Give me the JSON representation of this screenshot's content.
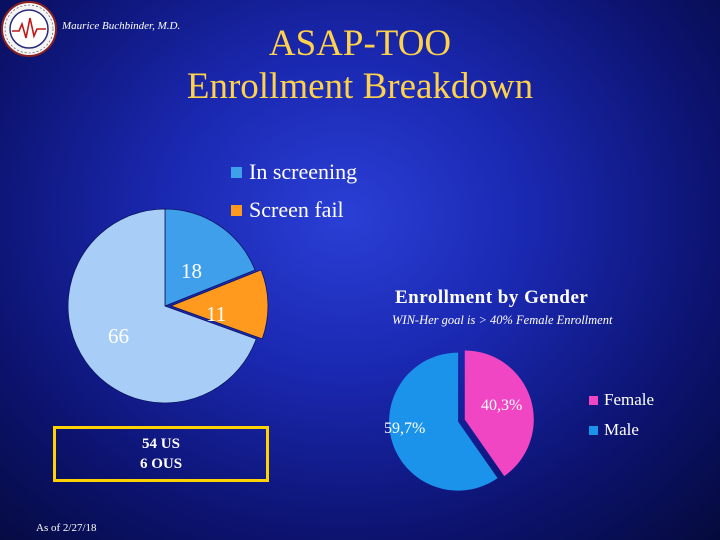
{
  "header": {
    "author": "Maurice Buchbinder, M.D.",
    "title_line1": "ASAP-TOO",
    "title_line2": "Enrollment Breakdown"
  },
  "footer": {
    "us_line": "54 US",
    "ous_line": "6 OUS",
    "as_of": "As of 2/27/18"
  },
  "colors": {
    "title": "#ffd24a",
    "in_screening": "#3f9fea",
    "screen_fail": "#ff9a1e",
    "enrolled": "#a8cdf6",
    "female": "#f046c4",
    "male": "#1b93ea",
    "box_border": "#ffd200"
  },
  "chart_data": [
    {
      "type": "pie",
      "title": "",
      "legend": [
        "In screening",
        "Screen fail"
      ],
      "legend_position": "top",
      "slices": [
        {
          "label": "66",
          "value": 66,
          "color": "#a8cdf6"
        },
        {
          "label": "18",
          "value": 18,
          "color": "#3f9fea"
        },
        {
          "label": "11",
          "value": 11,
          "color": "#ff9a1e"
        }
      ]
    },
    {
      "type": "pie",
      "title": "Enrollment by Gender",
      "subtitle": "WIN-Her goal is > 40% Female Enrollment",
      "legend": [
        "Female",
        "Male"
      ],
      "legend_position": "right",
      "slices": [
        {
          "label": "40,3%",
          "value": 40.3,
          "color": "#f046c4"
        },
        {
          "label": "59,7%",
          "value": 59.7,
          "color": "#1b93ea"
        }
      ]
    }
  ]
}
